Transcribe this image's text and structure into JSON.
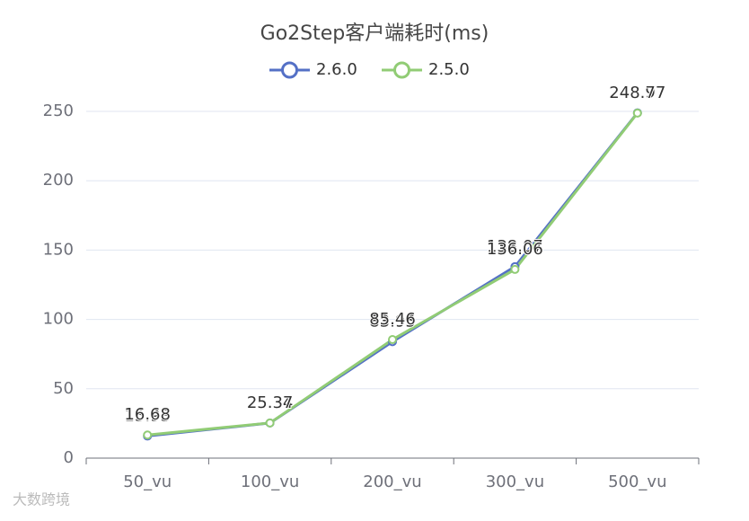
{
  "chart_data": {
    "type": "line",
    "title": "Go2Step客户端耗时(ms)",
    "categories": [
      "50_vu",
      "100_vu",
      "200_vu",
      "300_vu",
      "500_vu"
    ],
    "series": [
      {
        "name": "2.6.0",
        "color": "#5470c6",
        "values": [
          15.93,
          25.34,
          83.95,
          138.07,
          248.97
        ]
      },
      {
        "name": "2.5.0",
        "color": "#91cc75",
        "values": [
          16.68,
          25.37,
          85.46,
          136.06,
          248.77
        ]
      }
    ],
    "ylim": [
      0,
      250
    ],
    "yticks": [
      0,
      50,
      100,
      150,
      200,
      250
    ],
    "grid": true,
    "legend": "top",
    "watermark": "大数跨境"
  }
}
